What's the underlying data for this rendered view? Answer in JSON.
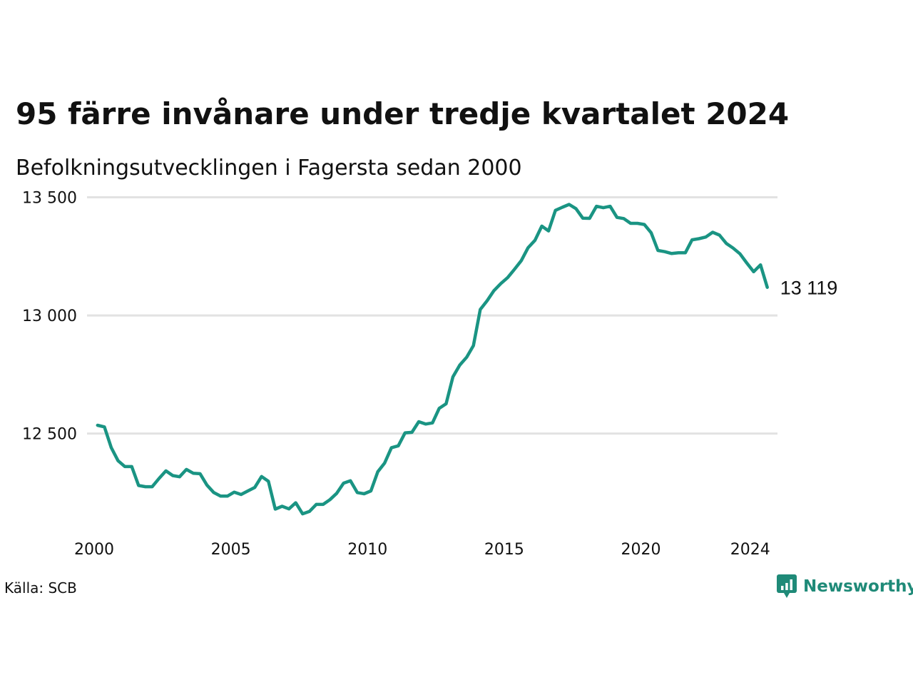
{
  "title": "95 färre invånare under tredje kvartalet 2024",
  "subtitle": "Befolkningsutvecklingen i Fagersta sedan 2000",
  "source": "Källa: SCB",
  "brand": {
    "name": "Newsworthy",
    "icon": "newsworthy-logo-icon",
    "color": "#1f8a78"
  },
  "chart_data": {
    "type": "line",
    "title": "95 färre invånare under tredje kvartalet 2024",
    "subtitle": "Befolkningsutvecklingen i Fagersta sedan 2000",
    "xlabel": "",
    "ylabel": "",
    "grid": true,
    "line_color": "#1a9483",
    "xlim": [
      "2000-01-01",
      "2024-12-31"
    ],
    "ylim": [
      12100,
      13550
    ],
    "x_ticks": [
      2000,
      2005,
      2010,
      2015,
      2020,
      2024
    ],
    "x_tick_labels": [
      "2000",
      "2005",
      "2010",
      "2015",
      "2020",
      "2024"
    ],
    "y_ticks": [
      12500,
      13000,
      13500
    ],
    "y_tick_labels": [
      "12 500",
      "13 000",
      "13 500"
    ],
    "end_label": "13 119",
    "series": [
      {
        "x": [
          "2000Q1",
          "2000Q2",
          "2000Q3",
          "2000Q4",
          "2001Q1",
          "2001Q2",
          "2001Q3",
          "2001Q4",
          "2002Q1",
          "2002Q2",
          "2002Q3",
          "2002Q4",
          "2003Q1",
          "2003Q2",
          "2003Q3",
          "2003Q4",
          "2004Q1",
          "2004Q2",
          "2004Q3",
          "2004Q4",
          "2005Q1",
          "2005Q2",
          "2005Q3",
          "2005Q4",
          "2006Q1",
          "2006Q2",
          "2006Q3",
          "2006Q4",
          "2007Q1",
          "2007Q2",
          "2007Q3",
          "2007Q4",
          "2008Q1",
          "2008Q2",
          "2008Q3",
          "2008Q4",
          "2009Q1",
          "2009Q2",
          "2009Q3",
          "2009Q4",
          "2010Q1",
          "2010Q2",
          "2010Q3",
          "2010Q4",
          "2011Q1",
          "2011Q2",
          "2011Q3",
          "2011Q4",
          "2012Q1",
          "2012Q2",
          "2012Q3",
          "2012Q4",
          "2013Q1",
          "2013Q2",
          "2013Q3",
          "2013Q4",
          "2014Q1",
          "2014Q2",
          "2014Q3",
          "2014Q4",
          "2015Q1",
          "2015Q2",
          "2015Q3",
          "2015Q4",
          "2016Q1",
          "2016Q2",
          "2016Q3",
          "2016Q4",
          "2017Q1",
          "2017Q2",
          "2017Q3",
          "2017Q4",
          "2018Q1",
          "2018Q2",
          "2018Q3",
          "2018Q4",
          "2019Q1",
          "2019Q2",
          "2019Q3",
          "2019Q4",
          "2020Q1",
          "2020Q2",
          "2020Q3",
          "2020Q4",
          "2021Q1",
          "2021Q2",
          "2021Q3",
          "2021Q4",
          "2022Q1",
          "2022Q2",
          "2022Q3",
          "2022Q4",
          "2023Q1",
          "2023Q2",
          "2023Q3",
          "2023Q4",
          "2024Q1",
          "2024Q2",
          "2024Q3"
        ],
        "values": [
          12535,
          12528,
          12440,
          12385,
          12360,
          12360,
          12280,
          12275,
          12275,
          12310,
          12342,
          12322,
          12317,
          12348,
          12332,
          12330,
          12282,
          12250,
          12235,
          12235,
          12252,
          12242,
          12257,
          12272,
          12318,
          12298,
          12180,
          12192,
          12181,
          12207,
          12160,
          12170,
          12200,
          12200,
          12220,
          12247,
          12290,
          12300,
          12250,
          12245,
          12257,
          12338,
          12375,
          12440,
          12448,
          12503,
          12505,
          12550,
          12540,
          12545,
          12607,
          12626,
          12740,
          12790,
          12823,
          12872,
          13025,
          13062,
          13105,
          13135,
          13160,
          13195,
          13232,
          13287,
          13318,
          13378,
          13358,
          13445,
          13458,
          13470,
          13452,
          13412,
          13411,
          13462,
          13456,
          13462,
          13415,
          13410,
          13390,
          13390,
          13385,
          13350,
          13275,
          13270,
          13262,
          13265,
          13265,
          13320,
          13325,
          13332,
          13352,
          13340,
          13305,
          13285,
          13261,
          13222,
          13185,
          13214,
          13119
        ]
      }
    ]
  }
}
